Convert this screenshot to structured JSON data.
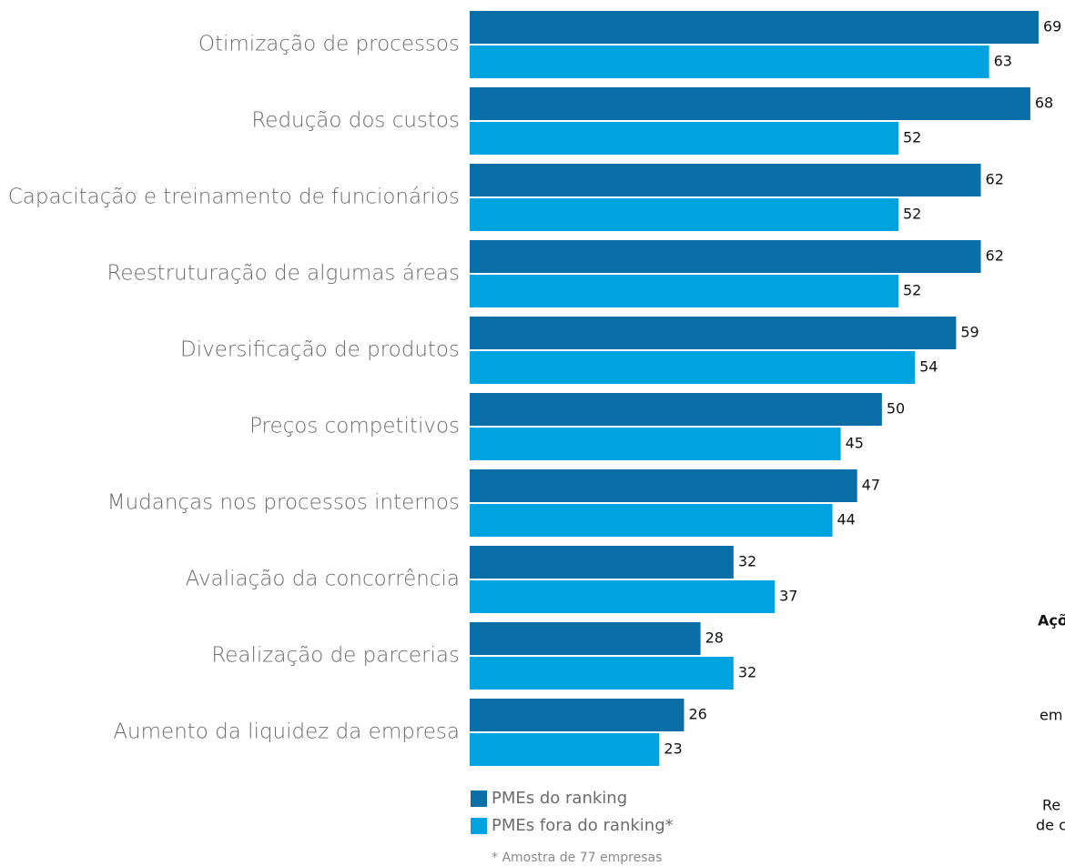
{
  "chart_data": {
    "type": "bar",
    "orientation": "horizontal",
    "categories": [
      "Otimização de processos",
      "Redução dos custos",
      "Capacitação e treinamento de funcionários",
      "Reestruturação de algumas áreas",
      "Diversificação de produtos",
      "Preços competitivos",
      "Mudanças nos processos internos",
      "Avaliação da concorrência",
      "Realização de parcerias",
      "Aumento da liquidez da empresa"
    ],
    "series": [
      {
        "name": "PMEs do ranking",
        "color": "#0a6fa6",
        "values": [
          69,
          68,
          62,
          62,
          59,
          50,
          47,
          32,
          28,
          26
        ]
      },
      {
        "name": "PMEs fora do ranking*",
        "color": "#00a3e0",
        "values": [
          63,
          52,
          52,
          52,
          54,
          45,
          44,
          37,
          32,
          23
        ]
      }
    ],
    "xlim": [
      0,
      70
    ],
    "footnote": "* Amostra de 77 empresas",
    "side_text": [
      "Açõ",
      "em",
      "Re",
      "de c"
    ]
  }
}
